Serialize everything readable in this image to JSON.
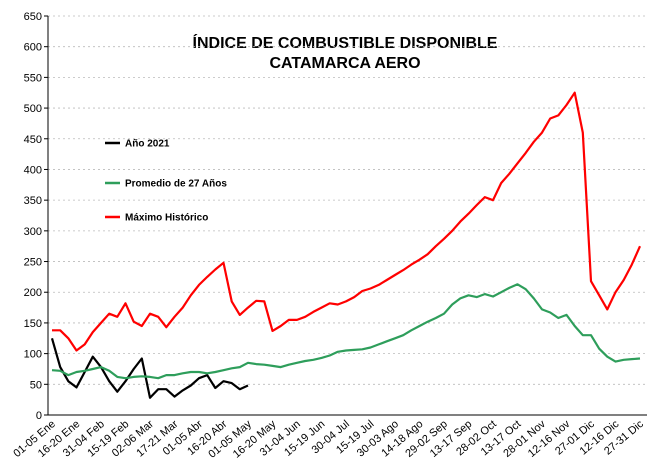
{
  "chart_data": {
    "type": "line",
    "title": "ÍNDICE DE COMBUSTIBLE DISPONIBLE",
    "subtitle": "CATAMARCA AERO",
    "categories": [
      "01-05 Ene",
      null,
      null,
      "16-20 Ene",
      null,
      null,
      "31-04 Feb",
      null,
      null,
      "15-19 Feb",
      null,
      null,
      "02-06 Mar",
      null,
      null,
      "17-21 Mar",
      null,
      null,
      "01-05 Abr",
      null,
      null,
      "16-20 Abr",
      null,
      null,
      "01-05 May",
      null,
      null,
      "16-20 May",
      null,
      null,
      "31-04 Jun",
      null,
      null,
      "15-19 Jun",
      null,
      null,
      "30-04 Jul",
      null,
      null,
      "15-19 Jul",
      null,
      null,
      "30-03 Ago",
      null,
      null,
      "14-18 Ago",
      null,
      null,
      "29-02 Sep",
      null,
      null,
      "13-17 Sep",
      null,
      null,
      "28-02 Oct",
      null,
      null,
      "13-17 Oct",
      null,
      null,
      "28-01 Nov",
      null,
      null,
      "12-16 Nov",
      null,
      null,
      "27-01 Dic",
      null,
      null,
      "12-16 Dic",
      null,
      null,
      "27-31 Dic"
    ],
    "series": [
      {
        "name": "Año 2021",
        "color": "#000000",
        "values": [
          125,
          78,
          55,
          45,
          70,
          95,
          78,
          55,
          38,
          55,
          75,
          92,
          28,
          42,
          42,
          30,
          40,
          48,
          60,
          65,
          44,
          55,
          52,
          42,
          48,
          null,
          null,
          null,
          null,
          null,
          null,
          null,
          null,
          null,
          null,
          null,
          null,
          null,
          null,
          null,
          null,
          null,
          null,
          null,
          null,
          null,
          null,
          null,
          null,
          null,
          null,
          null,
          null,
          null,
          null,
          null,
          null,
          null,
          null,
          null,
          null,
          null,
          null,
          null,
          null,
          null,
          null,
          null,
          null,
          null,
          null,
          null,
          null
        ]
      },
      {
        "name": "Promedio de 27 Años",
        "color": "#2e9e5b",
        "values": [
          73,
          72,
          65,
          70,
          72,
          75,
          78,
          72,
          62,
          60,
          62,
          63,
          62,
          60,
          65,
          65,
          68,
          70,
          70,
          68,
          70,
          73,
          76,
          78,
          85,
          83,
          82,
          80,
          78,
          82,
          85,
          88,
          90,
          93,
          97,
          103,
          105,
          106,
          107,
          110,
          115,
          120,
          125,
          130,
          138,
          145,
          152,
          158,
          165,
          180,
          190,
          195,
          192,
          197,
          193,
          200,
          207,
          213,
          205,
          190,
          172,
          167,
          158,
          163,
          145,
          130,
          130,
          108,
          95,
          87,
          90,
          91,
          92
        ]
      },
      {
        "name": "Máximo Histórico",
        "color": "#ff0000",
        "values": [
          138,
          138,
          125,
          105,
          115,
          135,
          150,
          165,
          160,
          182,
          152,
          145,
          165,
          160,
          143,
          160,
          175,
          195,
          212,
          225,
          237,
          248,
          185,
          163,
          175,
          186,
          185,
          137,
          145,
          155,
          155,
          160,
          168,
          175,
          182,
          180,
          185,
          192,
          202,
          206,
          212,
          220,
          228,
          236,
          245,
          253,
          262,
          275,
          287,
          300,
          315,
          328,
          342,
          355,
          350,
          378,
          393,
          410,
          427,
          445,
          460,
          483,
          488,
          505,
          525,
          460,
          218,
          195,
          172,
          200,
          220,
          245,
          275
        ]
      }
    ],
    "ylim": [
      0,
      650
    ],
    "yticks": [
      0,
      50,
      100,
      150,
      200,
      250,
      300,
      350,
      400,
      450,
      500,
      550,
      600,
      650
    ],
    "grid": true
  }
}
